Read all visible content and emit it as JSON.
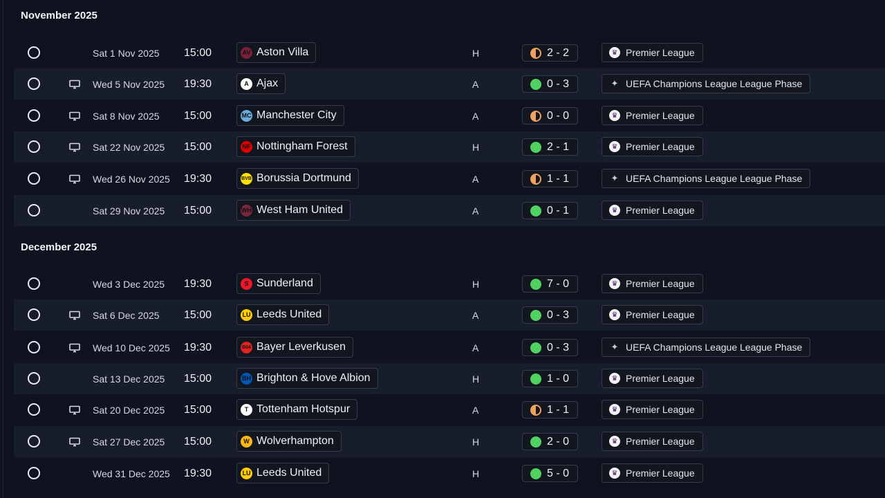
{
  "sections": [
    {
      "title": "November 2025",
      "fixtures": [
        {
          "date": "Sat 1 Nov 2025",
          "time": "15:00",
          "tv": false,
          "opponent": "Aston Villa",
          "crest_color": "#7a1f3d",
          "crest_glyph": "AV",
          "venue": "H",
          "result": "2 - 2",
          "outcome": "draw",
          "competition": "Premier League",
          "comp_type": "pl"
        },
        {
          "date": "Wed 5 Nov 2025",
          "time": "19:30",
          "tv": true,
          "opponent": "Ajax",
          "crest_color": "#ffffff",
          "crest_glyph": "A",
          "venue": "A",
          "result": "0 - 3",
          "outcome": "win",
          "competition": "UEFA Champions League League Phase",
          "comp_type": "ucl"
        },
        {
          "date": "Sat 8 Nov 2025",
          "time": "15:00",
          "tv": true,
          "opponent": "Manchester City",
          "crest_color": "#6cabdd",
          "crest_glyph": "MC",
          "venue": "A",
          "result": "0 - 0",
          "outcome": "draw",
          "competition": "Premier League",
          "comp_type": "pl"
        },
        {
          "date": "Sat 22 Nov 2025",
          "time": "15:00",
          "tv": true,
          "opponent": "Nottingham Forest",
          "crest_color": "#dd0000",
          "crest_glyph": "NF",
          "venue": "H",
          "result": "2 - 1",
          "outcome": "win",
          "competition": "Premier League",
          "comp_type": "pl"
        },
        {
          "date": "Wed 26 Nov 2025",
          "time": "19:30",
          "tv": true,
          "opponent": "Borussia Dortmund",
          "crest_color": "#fde100",
          "crest_glyph": "BVB",
          "venue": "A",
          "result": "1 - 1",
          "outcome": "draw",
          "competition": "UEFA Champions League League Phase",
          "comp_type": "ucl"
        },
        {
          "date": "Sat 29 Nov 2025",
          "time": "15:00",
          "tv": false,
          "opponent": "West Ham United",
          "crest_color": "#7a263a",
          "crest_glyph": "WH",
          "venue": "A",
          "result": "0 - 1",
          "outcome": "win",
          "competition": "Premier League",
          "comp_type": "pl"
        }
      ]
    },
    {
      "title": "December 2025",
      "fixtures": [
        {
          "date": "Wed 3 Dec 2025",
          "time": "19:30",
          "tv": false,
          "opponent": "Sunderland",
          "crest_color": "#eb172b",
          "crest_glyph": "S",
          "venue": "H",
          "result": "7 - 0",
          "outcome": "win",
          "competition": "Premier League",
          "comp_type": "pl"
        },
        {
          "date": "Sat 6 Dec 2025",
          "time": "15:00",
          "tv": true,
          "opponent": "Leeds United",
          "crest_color": "#ffcd00",
          "crest_glyph": "LU",
          "venue": "A",
          "result": "0 - 3",
          "outcome": "win",
          "competition": "Premier League",
          "comp_type": "pl"
        },
        {
          "date": "Wed 10 Dec 2025",
          "time": "19:30",
          "tv": true,
          "opponent": "Bayer Leverkusen",
          "crest_color": "#e32221",
          "crest_glyph": "B04",
          "venue": "A",
          "result": "0 - 3",
          "outcome": "win",
          "competition": "UEFA Champions League League Phase",
          "comp_type": "ucl"
        },
        {
          "date": "Sat 13 Dec 2025",
          "time": "15:00",
          "tv": false,
          "opponent": "Brighton & Hove Albion",
          "crest_color": "#0057b8",
          "crest_glyph": "BH",
          "venue": "H",
          "result": "1 - 0",
          "outcome": "win",
          "competition": "Premier League",
          "comp_type": "pl"
        },
        {
          "date": "Sat 20 Dec 2025",
          "time": "15:00",
          "tv": true,
          "opponent": "Tottenham Hotspur",
          "crest_color": "#ffffff",
          "crest_glyph": "T",
          "venue": "A",
          "result": "1 - 1",
          "outcome": "draw",
          "competition": "Premier League",
          "comp_type": "pl"
        },
        {
          "date": "Sat 27 Dec 2025",
          "time": "15:00",
          "tv": true,
          "opponent": "Wolverhampton",
          "crest_color": "#fdb913",
          "crest_glyph": "W",
          "venue": "H",
          "result": "2 - 0",
          "outcome": "win",
          "competition": "Premier League",
          "comp_type": "pl"
        },
        {
          "date": "Wed 31 Dec 2025",
          "time": "19:30",
          "tv": false,
          "opponent": "Leeds United",
          "crest_color": "#ffcd00",
          "crest_glyph": "LU",
          "venue": "H",
          "result": "5 - 0",
          "outcome": "win",
          "competition": "Premier League",
          "comp_type": "pl"
        }
      ]
    }
  ]
}
